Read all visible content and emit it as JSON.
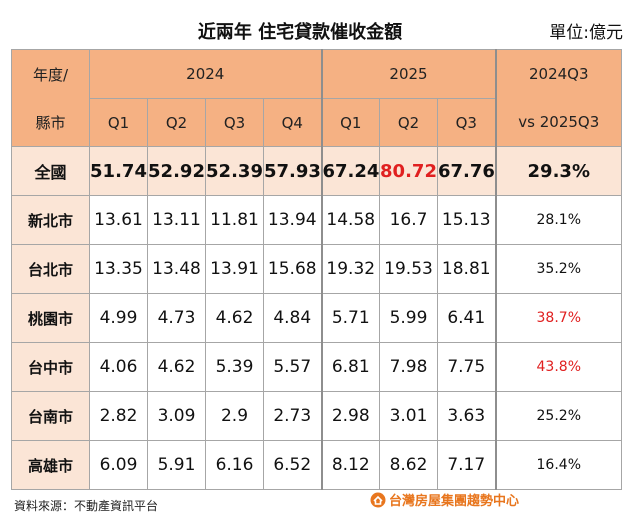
{
  "title": "近兩年  住宅貸款催收金額",
  "unit": "單位:億元",
  "header": {
    "corner_top": "年度/",
    "corner_bottom": "縣市",
    "year1": "2024",
    "year2": "2025",
    "compare_top": "2024Q3",
    "compare_bottom": "vs 2025Q3",
    "quarters": [
      "Q1",
      "Q2",
      "Q3",
      "Q4",
      "Q1",
      "Q2",
      "Q3"
    ]
  },
  "rows": [
    {
      "label": "全國",
      "values": [
        "51.74",
        "52.92",
        "52.39",
        "57.93",
        "67.24",
        "80.72",
        "67.76"
      ],
      "pct": "29.3%"
    },
    {
      "label": "新北市",
      "values": [
        "13.61",
        "13.11",
        "11.81",
        "13.94",
        "14.58",
        "16.7",
        "15.13"
      ],
      "pct": "28.1%"
    },
    {
      "label": "台北市",
      "values": [
        "13.35",
        "13.48",
        "13.91",
        "15.68",
        "19.32",
        "19.53",
        "18.81"
      ],
      "pct": "35.2%"
    },
    {
      "label": "桃園市",
      "values": [
        "4.99",
        "4.73",
        "4.62",
        "4.84",
        "5.71",
        "5.99",
        "6.41"
      ],
      "pct": "38.7%"
    },
    {
      "label": "台中市",
      "values": [
        "4.06",
        "4.62",
        "5.39",
        "5.57",
        "6.81",
        "7.98",
        "7.75"
      ],
      "pct": "43.8%"
    },
    {
      "label": "台南市",
      "values": [
        "2.82",
        "3.09",
        "2.9",
        "2.73",
        "2.98",
        "3.01",
        "3.63"
      ],
      "pct": "25.2%"
    },
    {
      "label": "高雄市",
      "values": [
        "6.09",
        "5.91",
        "6.16",
        "6.52",
        "8.12",
        "8.62",
        "7.17"
      ],
      "pct": "16.4%"
    }
  ],
  "highlight_color": "#e02020",
  "source": "資料來源：不動產資訊平台",
  "logo_text": "台灣房屋集團趨勢中心",
  "logo_icon": "taiwan-realty-logo-icon"
}
